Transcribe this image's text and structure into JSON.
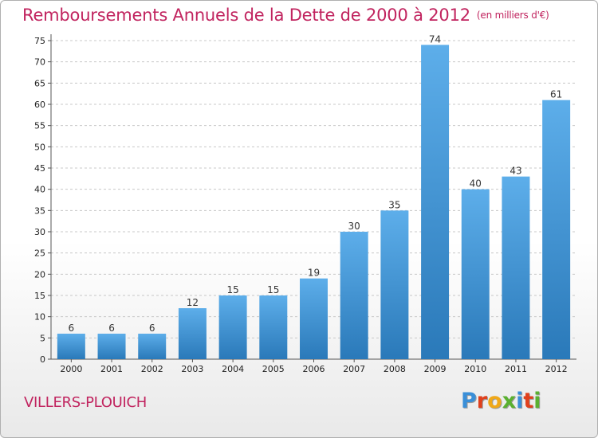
{
  "title": "Remboursements Annuels de la Dette de 2000 à 2012",
  "unit_note": "(en milliers d'€)",
  "commune": "VILLERS-PLOUICH",
  "logo": {
    "text": "Proxiti",
    "colors": [
      "#3a8fd8",
      "#e0401c",
      "#f0a818",
      "#5ab030",
      "#3a8fd8",
      "#e0401c",
      "#5ab030"
    ]
  },
  "colors": {
    "accent": "#c1245f",
    "bar_top": "#5daeea",
    "bar_bottom": "#2a79b9"
  },
  "chart_data": {
    "type": "bar",
    "categories": [
      "2000",
      "2001",
      "2002",
      "2003",
      "2004",
      "2005",
      "2006",
      "2007",
      "2008",
      "2009",
      "2010",
      "2011",
      "2012"
    ],
    "values": [
      6,
      6,
      6,
      12,
      15,
      15,
      19,
      30,
      35,
      74,
      40,
      43,
      61
    ],
    "title": "Remboursements Annuels de la Dette de 2000 à 2012",
    "xlabel": "",
    "ylabel": "",
    "ylim": [
      0,
      75
    ],
    "yticks": [
      0,
      5,
      10,
      15,
      20,
      25,
      30,
      35,
      40,
      45,
      50,
      55,
      60,
      65,
      70,
      75
    ],
    "grid": "horizontal-dashed",
    "legend": "none"
  }
}
